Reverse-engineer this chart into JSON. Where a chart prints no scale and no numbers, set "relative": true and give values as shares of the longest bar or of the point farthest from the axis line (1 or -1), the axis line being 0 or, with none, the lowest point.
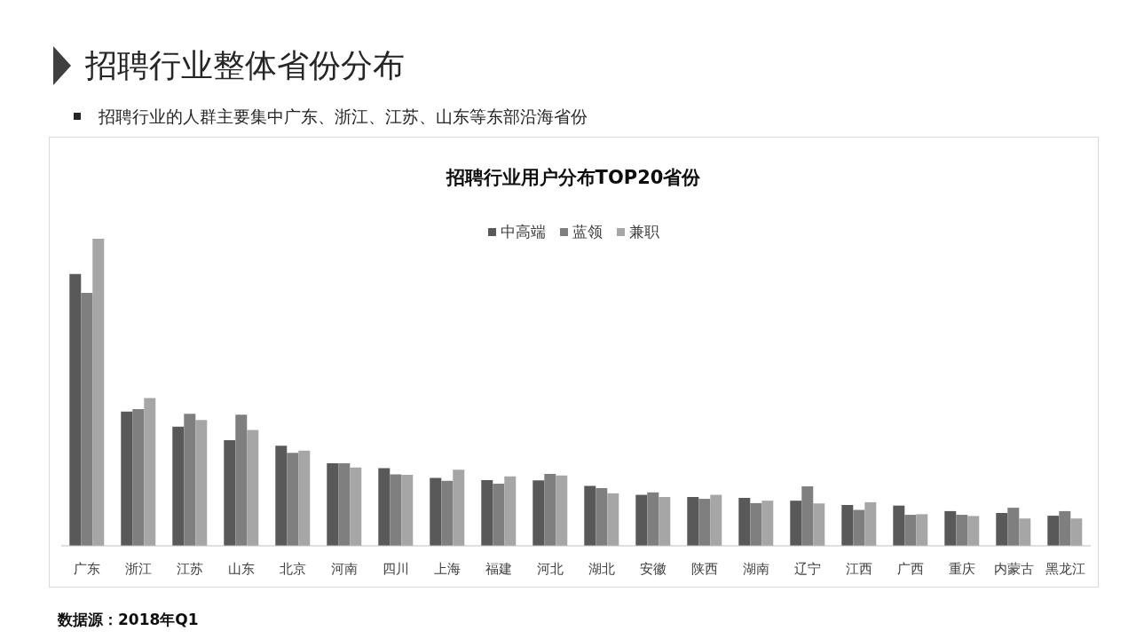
{
  "chart_data": {
    "type": "bar",
    "title": "招聘行业整体省份分布",
    "subtitle": "招聘行业用户分布TOP20省份",
    "annotations": [
      "招聘行业的人群主要集中广东、浙江、江苏、山东等东部沿海省份",
      "数据源：2018年Q1"
    ],
    "categories": [
      "广东",
      "浙江",
      "江苏",
      "山东",
      "北京",
      "河南",
      "四川",
      "上海",
      "福建",
      "河北",
      "湖北",
      "安徽",
      "陕西",
      "湖南",
      "辽宁",
      "江西",
      "广西",
      "重庆",
      "内蒙古",
      "黑龙江"
    ],
    "relative": true,
    "legend": "top",
    "series": [
      {
        "name": "中高端",
        "color": "#595959",
        "values": [
          0.885,
          0.437,
          0.388,
          0.344,
          0.326,
          0.269,
          0.253,
          0.221,
          0.214,
          0.213,
          0.195,
          0.166,
          0.159,
          0.156,
          0.147,
          0.133,
          0.131,
          0.113,
          0.107,
          0.098
        ]
      },
      {
        "name": "蓝领",
        "color": "#7f7f7f",
        "values": [
          0.824,
          0.445,
          0.43,
          0.427,
          0.303,
          0.269,
          0.233,
          0.212,
          0.202,
          0.234,
          0.188,
          0.174,
          0.153,
          0.139,
          0.194,
          0.117,
          0.101,
          0.101,
          0.124,
          0.113
        ]
      },
      {
        "name": "兼职",
        "color": "#a6a6a6",
        "values": [
          1,
          0.481,
          0.41,
          0.377,
          0.31,
          0.255,
          0.231,
          0.248,
          0.226,
          0.229,
          0.171,
          0.159,
          0.166,
          0.147,
          0.138,
          0.142,
          0.103,
          0.097,
          0.089,
          0.089
        ]
      }
    ]
  }
}
